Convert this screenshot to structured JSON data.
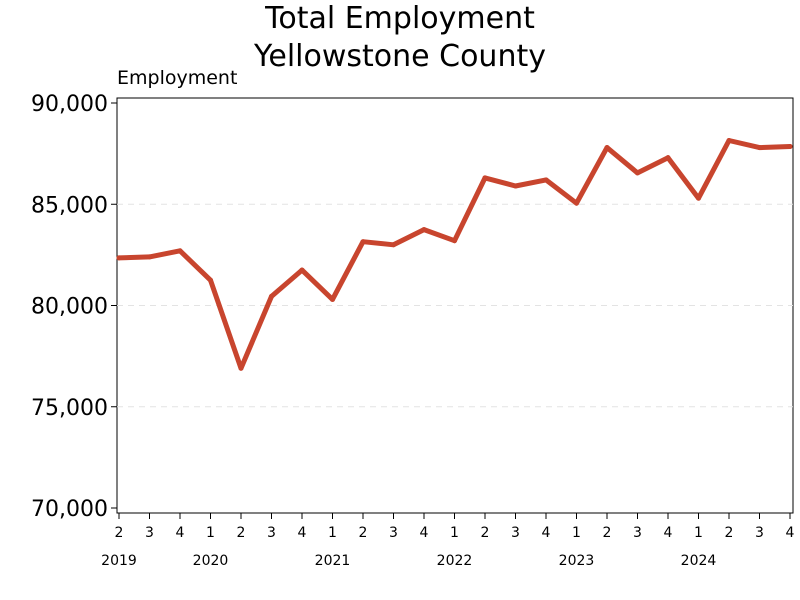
{
  "chart_data": {
    "type": "line",
    "title": "Total Employment",
    "subtitle": "Yellowstone County",
    "ylabel": "Employment",
    "xlabel": "",
    "ylim": [
      70000,
      90000
    ],
    "yticks": [
      70000,
      75000,
      80000,
      85000,
      90000
    ],
    "ytick_labels": [
      "70,000",
      "75,000",
      "80,000",
      "85,000",
      "90,000"
    ],
    "grid": "horizontal dashed",
    "line_color": "#c8452e",
    "quarters": [
      "2",
      "3",
      "4",
      "1",
      "2",
      "3",
      "4",
      "1",
      "2",
      "3",
      "4",
      "1",
      "2",
      "3",
      "4",
      "1",
      "2",
      "3",
      "4",
      "1",
      "2",
      "3",
      "4"
    ],
    "years": [
      {
        "label": "2019",
        "index": 0
      },
      {
        "label": "2020",
        "index": 3
      },
      {
        "label": "2021",
        "index": 7
      },
      {
        "label": "2022",
        "index": 11
      },
      {
        "label": "2023",
        "index": 15
      },
      {
        "label": "2024",
        "index": 19
      }
    ],
    "series": [
      {
        "name": "Employment",
        "values": [
          82350,
          82400,
          82700,
          81250,
          76900,
          80450,
          81750,
          80300,
          83150,
          83000,
          83750,
          83200,
          86300,
          85900,
          86200,
          85050,
          87800,
          86550,
          87300,
          85300,
          88150,
          87800,
          87850
        ]
      }
    ]
  }
}
